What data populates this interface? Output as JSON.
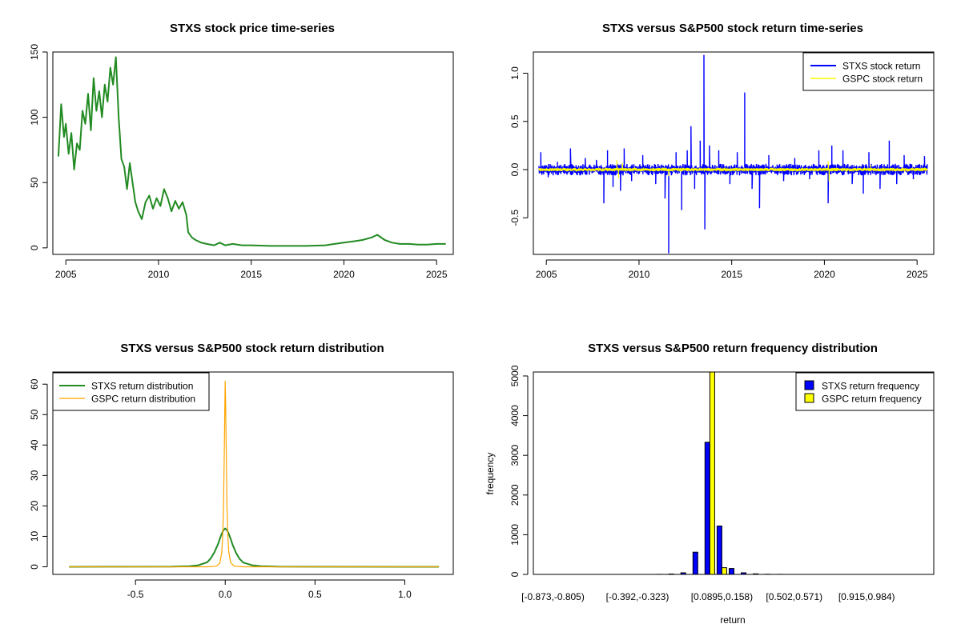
{
  "chart_data": [
    {
      "type": "line",
      "title": "STXS stock price time-series",
      "xlim": [
        2004.3,
        2025.9
      ],
      "ylim": [
        -5,
        150
      ],
      "x_ticks": [
        2005,
        2010,
        2015,
        2020,
        2025
      ],
      "x_tick_labels": [
        "2005",
        "2010",
        "2015",
        "2020",
        "2025"
      ],
      "y_ticks": [
        0,
        50,
        100,
        150
      ],
      "y_tick_labels": [
        "0",
        "50",
        "100",
        "150"
      ],
      "series": [
        {
          "color": "#228b22",
          "x": [
            2004.6,
            2004.75,
            2004.9,
            2005.0,
            2005.15,
            2005.3,
            2005.45,
            2005.6,
            2005.75,
            2005.9,
            2006.05,
            2006.2,
            2006.35,
            2006.5,
            2006.65,
            2006.8,
            2006.95,
            2007.1,
            2007.25,
            2007.4,
            2007.55,
            2007.7,
            2007.85,
            2008.0,
            2008.15,
            2008.3,
            2008.45,
            2008.6,
            2008.75,
            2008.9,
            2009.1,
            2009.3,
            2009.5,
            2009.7,
            2009.9,
            2010.1,
            2010.3,
            2010.5,
            2010.7,
            2010.9,
            2011.1,
            2011.3,
            2011.5,
            2011.6,
            2011.8,
            2012.0,
            2012.3,
            2012.6,
            2013.0,
            2013.3,
            2013.6,
            2014.0,
            2014.5,
            2015.0,
            2016.0,
            2017.0,
            2018.0,
            2019.0,
            2019.5,
            2020.0,
            2020.5,
            2021.0,
            2021.5,
            2021.8,
            2022.2,
            2022.6,
            2023.0,
            2023.5,
            2024.0,
            2024.5,
            2025.0,
            2025.5
          ],
          "y": [
            70,
            110,
            85,
            95,
            72,
            88,
            60,
            80,
            75,
            105,
            95,
            118,
            90,
            130,
            105,
            120,
            100,
            125,
            112,
            138,
            125,
            146,
            100,
            68,
            62,
            45,
            65,
            50,
            35,
            28,
            22,
            35,
            40,
            30,
            38,
            32,
            45,
            38,
            28,
            36,
            30,
            35,
            25,
            12,
            8,
            6,
            4,
            3,
            2,
            4,
            2,
            3,
            2,
            2,
            1.5,
            1.5,
            1.5,
            2,
            3,
            4,
            5,
            6,
            8,
            10,
            6,
            4,
            3,
            3,
            2.5,
            2.5,
            3,
            3
          ]
        }
      ]
    },
    {
      "type": "line",
      "title": "STXS versus S&P500 stock return time-series",
      "xlim": [
        2004.3,
        2025.9
      ],
      "ylim": [
        -0.88,
        1.22
      ],
      "x_ticks": [
        2005,
        2010,
        2015,
        2020,
        2025
      ],
      "x_tick_labels": [
        "2005",
        "2010",
        "2015",
        "2020",
        "2025"
      ],
      "y_ticks": [
        -0.5,
        0.0,
        0.5,
        1.0
      ],
      "y_tick_labels": [
        "-0.5",
        "0.0",
        "0.5",
        "1.0"
      ],
      "legend": {
        "position": "top-right"
      },
      "series": [
        {
          "name": "STXS stock return",
          "color": "#0000ff",
          "spikes": [
            [
              2004.7,
              0.18
            ],
            [
              2005.1,
              -0.08
            ],
            [
              2005.6,
              0.08
            ],
            [
              2006.3,
              0.22
            ],
            [
              2007.1,
              0.12
            ],
            [
              2007.7,
              0.1
            ],
            [
              2008.1,
              -0.35
            ],
            [
              2008.3,
              0.2
            ],
            [
              2008.6,
              -0.18
            ],
            [
              2009.0,
              -0.22
            ],
            [
              2009.2,
              0.22
            ],
            [
              2009.6,
              -0.12
            ],
            [
              2010.2,
              0.15
            ],
            [
              2010.9,
              -0.15
            ],
            [
              2011.4,
              -0.3
            ],
            [
              2011.6,
              -0.87
            ],
            [
              2012.0,
              0.18
            ],
            [
              2012.3,
              -0.42
            ],
            [
              2012.6,
              0.2
            ],
            [
              2012.8,
              0.45
            ],
            [
              2013.0,
              -0.2
            ],
            [
              2013.3,
              0.3
            ],
            [
              2013.5,
              1.19
            ],
            [
              2013.55,
              -0.62
            ],
            [
              2013.8,
              0.25
            ],
            [
              2014.3,
              0.2
            ],
            [
              2014.9,
              -0.15
            ],
            [
              2015.3,
              0.18
            ],
            [
              2015.7,
              0.8
            ],
            [
              2016.1,
              -0.2
            ],
            [
              2016.5,
              -0.4
            ],
            [
              2017.0,
              0.15
            ],
            [
              2017.8,
              -0.12
            ],
            [
              2018.4,
              0.12
            ],
            [
              2019.2,
              -0.1
            ],
            [
              2019.7,
              0.2
            ],
            [
              2020.2,
              -0.35
            ],
            [
              2020.4,
              0.25
            ],
            [
              2021.0,
              0.2
            ],
            [
              2021.5,
              -0.15
            ],
            [
              2022.1,
              -0.25
            ],
            [
              2022.4,
              0.18
            ],
            [
              2023.0,
              -0.2
            ],
            [
              2023.5,
              0.3
            ],
            [
              2023.9,
              -0.15
            ],
            [
              2024.3,
              0.15
            ],
            [
              2024.8,
              -0.1
            ],
            [
              2025.4,
              0.14
            ]
          ],
          "band": 0.05
        },
        {
          "name": "GSPC stock return",
          "color": "#ffff00",
          "spikes": [
            [
              2008.8,
              0.1
            ],
            [
              2008.9,
              -0.09
            ],
            [
              2009.1,
              0.07
            ],
            [
              2011.6,
              -0.07
            ],
            [
              2020.2,
              0.09
            ],
            [
              2020.25,
              -0.12
            ],
            [
              2022.5,
              0.05
            ]
          ],
          "band": 0.015
        }
      ]
    },
    {
      "type": "line",
      "title": "STXS versus S&P500 stock return distribution",
      "xlim": [
        -0.96,
        1.27
      ],
      "ylim": [
        -2.5,
        64
      ],
      "x_ticks": [
        -0.5,
        0.0,
        0.5,
        1.0
      ],
      "x_tick_labels": [
        "-0.5",
        "0.0",
        "0.5",
        "1.0"
      ],
      "y_ticks": [
        0,
        10,
        20,
        30,
        40,
        50,
        60
      ],
      "y_tick_labels": [
        "0",
        "10",
        "20",
        "30",
        "40",
        "50",
        "60"
      ],
      "legend": {
        "position": "top-left"
      },
      "series": [
        {
          "name": "STXS return distribution",
          "color": "#228b22",
          "x": [
            -0.87,
            -0.3,
            -0.2,
            -0.15,
            -0.1,
            -0.08,
            -0.06,
            -0.04,
            -0.03,
            -0.02,
            -0.01,
            0.0,
            0.01,
            0.02,
            0.03,
            0.04,
            0.06,
            0.08,
            0.1,
            0.15,
            0.2,
            0.3,
            1.19
          ],
          "y": [
            0.0,
            0.05,
            0.2,
            0.5,
            1.5,
            2.8,
            4.8,
            7.5,
            9.2,
            10.8,
            12.0,
            12.6,
            12.0,
            10.8,
            9.2,
            7.4,
            4.6,
            2.6,
            1.4,
            0.5,
            0.2,
            0.05,
            0.0
          ]
        },
        {
          "name": "GSPC return distribution",
          "color": "#ffa500",
          "x": [
            -0.87,
            -0.1,
            -0.05,
            -0.03,
            -0.02,
            -0.015,
            -0.01,
            -0.005,
            -0.002,
            0.0,
            0.002,
            0.005,
            0.01,
            0.015,
            0.02,
            0.03,
            0.05,
            0.1,
            1.19
          ],
          "y": [
            0.0,
            0.0,
            0.2,
            1.2,
            4.5,
            9.0,
            18.0,
            38.0,
            54.0,
            61.0,
            55.0,
            40.0,
            19.0,
            9.5,
            4.8,
            1.4,
            0.2,
            0.0,
            0.0
          ]
        }
      ]
    },
    {
      "type": "bar",
      "title": "STXS versus S&P500 return frequency distribution",
      "xlabel": "return",
      "ylabel": "frequency",
      "ylim": [
        0,
        5100
      ],
      "y_ticks": [
        0,
        1000,
        2000,
        3000,
        4000,
        5000
      ],
      "y_tick_labels": [
        "0",
        "1000",
        "2000",
        "3000",
        "4000",
        "5000"
      ],
      "x_tick_labels": [
        "[-0.873,-0.805)",
        "[-0.392,-0.323)",
        "[0.0895,0.158)",
        "[0.502,0.571)",
        "[0.915,0.984)"
      ],
      "x_tick_bins": [
        0,
        7,
        14,
        20,
        26
      ],
      "legend": {
        "position": "top-right"
      },
      "n_bins": 31,
      "series": [
        {
          "name": "STXS return frequency",
          "color": "#0000ff",
          "values": [
            1,
            0,
            0,
            0,
            0,
            0,
            0,
            0,
            0,
            2,
            10,
            40,
            560,
            3330,
            1220,
            150,
            40,
            15,
            5,
            2,
            1,
            0,
            0,
            0,
            0,
            0,
            0,
            0,
            0,
            0,
            1
          ]
        },
        {
          "name": "GSPC return frequency",
          "color": "#ffff00",
          "values": [
            0,
            0,
            0,
            0,
            0,
            0,
            0,
            0,
            0,
            0,
            0,
            0,
            0,
            5100,
            170,
            0,
            0,
            0,
            0,
            0,
            0,
            0,
            0,
            0,
            0,
            0,
            0,
            0,
            0,
            0,
            0
          ]
        }
      ]
    }
  ]
}
